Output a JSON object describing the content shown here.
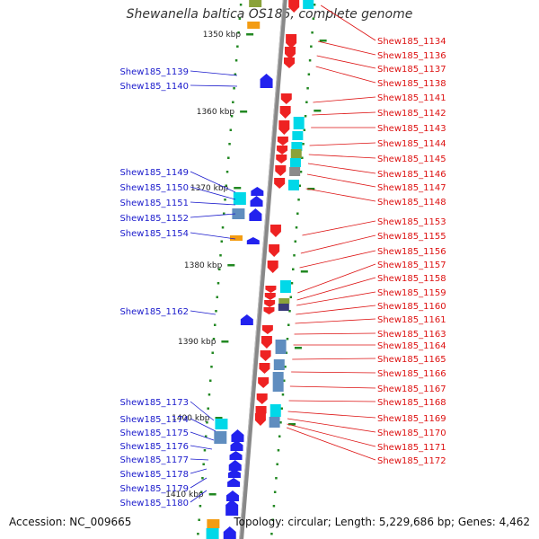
{
  "title": "Shewanella baltica OS185, complete genome",
  "footer": {
    "accession": "Accession: NC_009665",
    "topology": "Topology: circular; Length: 5,229,686 bp; Genes: 4,462"
  },
  "colors": {
    "minus_strand_gene": "#2222ee",
    "plus_strand_gene": "#ee2222",
    "minus_label": "#1a1acc",
    "plus_label": "#dd1111",
    "backbone": "#888888",
    "tick_marks": "#228822",
    "orf_cyan": "#00d8e8",
    "orf_orange": "#f39c12",
    "orf_steelblue": "#5f8dbf",
    "orf_olive": "#8aa23a",
    "orf_gray": "#8a8a8a",
    "orf_navy": "#3a3a7a"
  },
  "scale_ticks": [
    "1350 kbp",
    "1360 kbp",
    "1370 kbp",
    "1380 kbp",
    "1390 kbp",
    "1400 kbp",
    "1410 kbp"
  ],
  "left_genes": [
    "Shew185_1139",
    "Shew185_1140",
    "Shew185_1149",
    "Shew185_1150",
    "Shew185_1151",
    "Shew185_1152",
    "Shew185_1154",
    "Shew185_1162",
    "Shew185_1173",
    "Shew185_1174",
    "Shew185_1175",
    "Shew185_1176",
    "Shew185_1177",
    "Shew185_1178",
    "Shew185_1179",
    "Shew185_1180"
  ],
  "right_genes": [
    "Shew185_1134",
    "Shew185_1136",
    "Shew185_1137",
    "Shew185_1138",
    "Shew185_1141",
    "Shew185_1142",
    "Shew185_1143",
    "Shew185_1144",
    "Shew185_1145",
    "Shew185_1146",
    "Shew185_1147",
    "Shew185_1148",
    "Shew185_1153",
    "Shew185_1155",
    "Shew185_1156",
    "Shew185_1157",
    "Shew185_1158",
    "Shew185_1159",
    "Shew185_1160",
    "Shew185_1161",
    "Shew185_1163",
    "Shew185_1164",
    "Shew185_1165",
    "Shew185_1166",
    "Shew185_1167",
    "Shew185_1168",
    "Shew185_1169",
    "Shew185_1170",
    "Shew185_1171",
    "Shew185_1172"
  ]
}
